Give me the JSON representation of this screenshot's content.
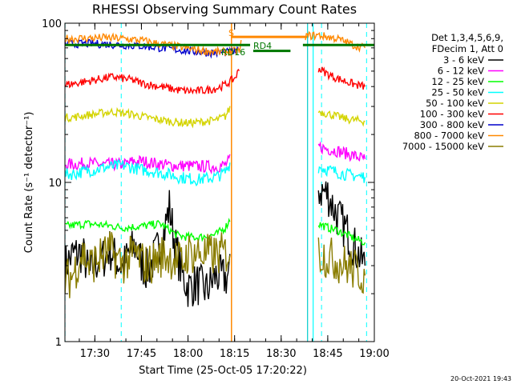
{
  "chart_data": {
    "type": "line",
    "title": "RHESSI Observing Summary Count Rates",
    "xlabel": "Start Time (25-Oct-05 17:20:22)",
    "ylabel": "Count Rate (s⁻¹ detector⁻¹)",
    "ylog": true,
    "ylim": [
      1,
      100
    ],
    "xlim": [
      "17:20:22",
      "19:00:00"
    ],
    "x_ticks": [
      "17:30",
      "17:45",
      "18:00",
      "18:15",
      "18:30",
      "18:45",
      "19:00"
    ],
    "y_ticks": [
      "1",
      "10",
      "100"
    ],
    "legend_header": [
      "Det 1,3,4,5,6,9,",
      "FDecim 1, Att 0"
    ],
    "legend_placement": "right",
    "timestamp": "20-Oct-2021 19:43",
    "annotations": {
      "attenuator_label": "S",
      "rd4_label": "RD4",
      "rd16_label": "RD16"
    },
    "events": [
      {
        "kind": "night",
        "start": "18:14.0",
        "end": "18:38.5"
      },
      {
        "kind": "saa_line",
        "t": "18:40.3"
      }
    ],
    "dashed_markers": [
      "17:20.4",
      "17:38.5",
      "18:43.0",
      "18:57.5"
    ],
    "series": [
      {
        "name": "3 - 6 keV",
        "color": "#000000",
        "t": [
          17.34,
          17.38,
          17.43,
          17.45,
          17.47,
          17.5,
          17.55,
          17.58,
          17.62,
          17.65,
          17.68,
          17.72,
          17.75,
          17.78,
          17.8,
          17.83,
          17.87,
          17.9,
          17.93,
          17.97,
          18.0,
          18.05,
          18.1,
          18.15,
          18.2,
          18.23,
          18.7,
          18.75,
          18.78,
          18.8,
          18.85,
          18.9,
          18.95
        ],
        "y": [
          3.0,
          3.5,
          3.6,
          3.2,
          2.6,
          3.1,
          3.4,
          3.8,
          3.2,
          2.9,
          3.5,
          4.0,
          3.1,
          2.8,
          3.0,
          3.6,
          4.8,
          7.0,
          4.1,
          2.6,
          2.2,
          2.3,
          2.1,
          2.6,
          2.5,
          2.7,
          9.0,
          8.5,
          7.0,
          6.2,
          5.0,
          3.8,
          3.0
        ]
      },
      {
        "name": "6 - 12 keV",
        "color": "#ff00ff",
        "t": [
          17.34,
          17.4,
          17.45,
          17.5,
          17.55,
          17.6,
          17.63,
          17.66,
          17.7,
          17.75,
          17.8,
          17.85,
          17.9,
          17.95,
          18.0,
          18.05,
          18.1,
          18.15,
          18.2,
          18.23,
          18.7,
          18.75,
          18.8,
          18.85,
          18.9,
          18.95
        ],
        "y": [
          13.0,
          13.0,
          13.2,
          13.1,
          12.9,
          13.0,
          13.0,
          13.0,
          13.5,
          13.6,
          13.3,
          13.0,
          12.8,
          12.7,
          12.7,
          12.6,
          12.6,
          12.5,
          12.9,
          14.0,
          16.8,
          16.2,
          15.8,
          15.2,
          14.6,
          14.0
        ]
      },
      {
        "name": "12 - 25 keV",
        "color": "#00ff00",
        "t": [
          17.34,
          17.45,
          17.55,
          17.65,
          17.75,
          17.85,
          17.95,
          18.05,
          18.15,
          18.2,
          18.23,
          18.7,
          18.75,
          18.8,
          18.85,
          18.9,
          18.95
        ],
        "y": [
          5.3,
          5.5,
          5.4,
          5.2,
          5.3,
          5.5,
          4.6,
          4.5,
          4.7,
          5.2,
          6.0,
          5.5,
          5.2,
          5.0,
          4.7,
          4.4,
          4.2
        ]
      },
      {
        "name": "25 - 50 keV",
        "color": "#00ffff",
        "t": [
          17.34,
          17.4,
          17.45,
          17.5,
          17.55,
          17.6,
          17.65,
          17.7,
          17.75,
          17.8,
          17.85,
          17.9,
          17.95,
          18.0,
          18.05,
          18.1,
          18.15,
          18.2,
          18.23,
          18.7,
          18.75,
          18.8,
          18.85,
          18.9,
          18.95
        ],
        "y": [
          11.2,
          11.4,
          11.8,
          12.0,
          12.4,
          12.6,
          12.8,
          12.4,
          12.0,
          11.8,
          11.5,
          11.2,
          10.8,
          10.6,
          10.4,
          10.6,
          10.8,
          11.6,
          13.5,
          12.5,
          12.0,
          11.6,
          11.2,
          11.0,
          10.8
        ]
      },
      {
        "name": "50 - 100 keV",
        "color": "#d4d400",
        "t": [
          17.34,
          17.4,
          17.45,
          17.5,
          17.55,
          17.6,
          17.65,
          17.7,
          17.75,
          17.8,
          17.85,
          17.9,
          17.95,
          18.0,
          18.05,
          18.1,
          18.15,
          18.2,
          18.23,
          18.7,
          18.75,
          18.8,
          18.85,
          18.9,
          18.95
        ],
        "y": [
          25.5,
          25.8,
          26.4,
          26.8,
          27.4,
          27.8,
          27.2,
          26.8,
          26.0,
          25.3,
          24.7,
          24.2,
          23.8,
          23.6,
          23.8,
          24.2,
          24.6,
          26.0,
          30.0,
          28.0,
          27.0,
          26.0,
          25.0,
          24.6,
          24.2
        ]
      },
      {
        "name": "100 - 300 keV",
        "color": "#ff0000",
        "t": [
          17.34,
          17.4,
          17.45,
          17.5,
          17.55,
          17.6,
          17.65,
          17.7,
          17.75,
          17.8,
          17.85,
          17.9,
          17.95,
          18.0,
          18.05,
          18.1,
          18.15,
          18.2,
          18.25,
          18.28,
          18.7,
          18.75,
          18.8,
          18.85,
          18.9,
          18.95
        ],
        "y": [
          41.0,
          42.0,
          43.0,
          44.0,
          45.0,
          46.0,
          45.0,
          44.0,
          42.0,
          41.0,
          40.0,
          39.0,
          38.0,
          37.5,
          37.5,
          38.0,
          39.0,
          41.0,
          45.0,
          52.0,
          52.0,
          48.0,
          45.0,
          43.0,
          41.0,
          40.0
        ]
      },
      {
        "name": "300 - 800 keV",
        "color": "#0000cc",
        "t": [
          17.34,
          17.45,
          17.55,
          17.65,
          17.75,
          17.85,
          17.95,
          18.05,
          18.15,
          18.2,
          18.25,
          18.28
        ],
        "y": [
          74.0,
          74.5,
          74.0,
          73.0,
          72.0,
          70.0,
          68.0,
          66.0,
          65.0,
          65.5,
          66.0,
          67.0
        ]
      },
      {
        "name": "800 - 7000 keV",
        "color": "#ff8800",
        "t": [
          17.34,
          17.45,
          17.55,
          17.65,
          17.75,
          17.85,
          17.95,
          18.05,
          18.15,
          18.2,
          18.25,
          18.28,
          18.29,
          18.63,
          18.7,
          18.75,
          18.8,
          18.85,
          18.9,
          18.95
        ],
        "y": [
          80.0,
          80.5,
          81.0,
          80.0,
          78.0,
          74.0,
          71.0,
          68.0,
          66.0,
          66.0,
          66.5,
          67.0,
          83.0,
          83.0,
          84.0,
          82.0,
          80.0,
          76.0,
          72.0,
          70.0
        ]
      },
      {
        "name": "7000 - 15000 keV",
        "color": "#8a7d00",
        "t": [
          17.34,
          17.38,
          17.43,
          17.45,
          17.47,
          17.5,
          17.55,
          17.58,
          17.62,
          17.65,
          17.68,
          17.72,
          17.75,
          17.78,
          17.8,
          17.83,
          17.87,
          17.9,
          17.93,
          17.97,
          18.0,
          18.05,
          18.1,
          18.15,
          18.2,
          18.23,
          18.7,
          18.75,
          18.8,
          18.85,
          18.9,
          18.95
        ],
        "y": [
          2.4,
          2.6,
          3.6,
          3.4,
          3.0,
          3.2,
          3.5,
          3.7,
          3.3,
          3.1,
          3.3,
          3.6,
          3.2,
          3.0,
          3.1,
          3.3,
          3.5,
          3.4,
          3.3,
          3.1,
          3.6,
          3.6,
          3.5,
          3.5,
          3.6,
          3.7,
          3.6,
          3.4,
          3.2,
          3.0,
          2.8,
          2.6
        ]
      }
    ]
  }
}
